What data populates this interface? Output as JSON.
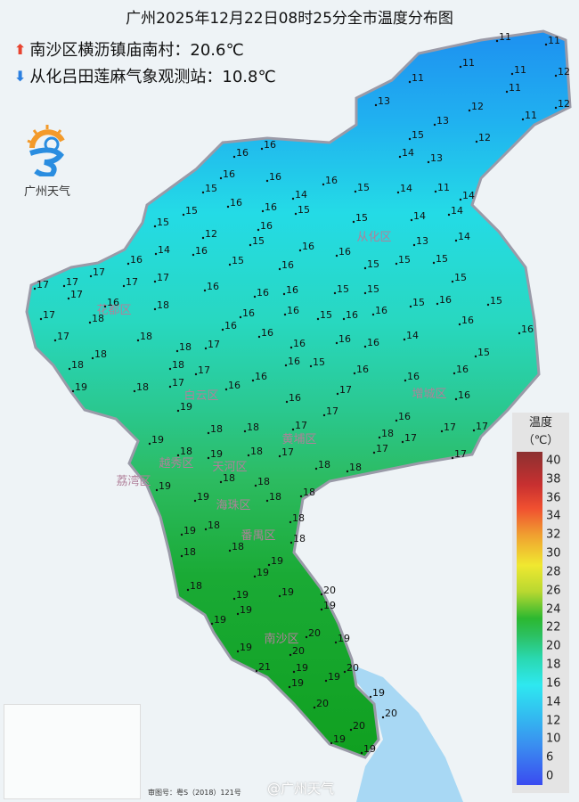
{
  "title": "广州2025年12月22日08时25分全市温度分布图",
  "max_station": {
    "icon": "arrow-up-icon",
    "color": "#e8432f",
    "text": "南沙区横沥镇庙南村：20.6℃"
  },
  "min_station": {
    "icon": "arrow-down-icon",
    "color": "#2b7fe0",
    "text": "从化吕田莲麻气象观测站：10.8℃"
  },
  "logo": {
    "text": "广州天气"
  },
  "legend": {
    "title": "温度",
    "unit": "（℃）",
    "ticks": [
      "40",
      "38",
      "36",
      "34",
      "32",
      "30",
      "28",
      "26",
      "24",
      "22",
      "20",
      "18",
      "16",
      "14",
      "12",
      "10",
      "6",
      "0"
    ]
  },
  "districts": [
    "从化区",
    "花都区",
    "白云区",
    "增城区",
    "黄埔区",
    "天河区",
    "越秀区",
    "荔湾区",
    "海珠区",
    "番禺区",
    "南沙区"
  ],
  "stations": [
    "11",
    "11",
    "11",
    "11",
    "12",
    "11",
    "11",
    "13",
    "12",
    "12",
    "11",
    "13",
    "15",
    "12",
    "16",
    "16",
    "14",
    "13",
    "16",
    "16",
    "16",
    "15",
    "14",
    "11",
    "15",
    "14",
    "16",
    "14",
    "16",
    "15",
    "14",
    "14",
    "15",
    "15",
    "12",
    "15",
    "16",
    "15",
    "13",
    "14",
    "14",
    "16",
    "16",
    "16",
    "16",
    "15",
    "15",
    "15",
    "15",
    "17",
    "17",
    "16",
    "17",
    "17",
    "17",
    "15",
    "15",
    "15",
    "16",
    "16",
    "17",
    "16",
    "16",
    "18",
    "15",
    "16",
    "15",
    "17",
    "18",
    "16",
    "16",
    "15",
    "16",
    "16",
    "16",
    "16",
    "17",
    "18",
    "16",
    "16",
    "16",
    "16",
    "16",
    "14",
    "18",
    "18",
    "17",
    "15",
    "18",
    "18",
    "17",
    "16",
    "15",
    "16",
    "16",
    "16",
    "19",
    "18",
    "17",
    "16",
    "16",
    "16",
    "17",
    "16",
    "19",
    "17",
    "16",
    "19",
    "18",
    "18",
    "17",
    "18",
    "17",
    "17",
    "17",
    "18",
    "19",
    "18",
    "17",
    "18",
    "18",
    "17",
    "17",
    "19",
    "19",
    "18",
    "18",
    "18",
    "18",
    "18",
    "19",
    "18",
    "18",
    "18",
    "19",
    "18",
    "19",
    "18",
    "19",
    "20",
    "19",
    "19",
    "19",
    "19",
    "20",
    "19",
    "19",
    "20",
    "21",
    "19",
    "20",
    "19",
    "19",
    "19",
    "20",
    "20",
    "20",
    "19",
    "19",
    "20",
    "19"
  ],
  "watermark": "@广州天气",
  "approval_no": "审图号：粤S（2018）121号",
  "colors": {
    "north": "#1e9bf0",
    "middle": "#24dbe0",
    "south": "#16a828",
    "water": "#a8d8f4"
  }
}
